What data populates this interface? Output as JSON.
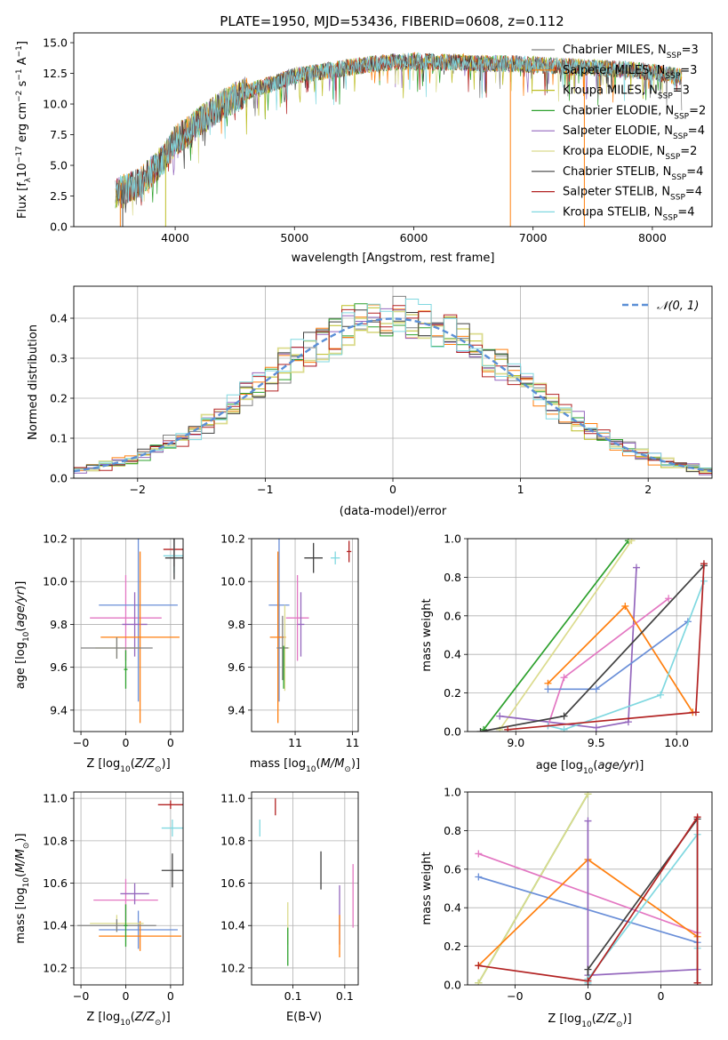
{
  "figure_title": "PLATE=1950, MJD=53436, FIBERID=0608, z=0.112",
  "colors": {
    "chabrier_miles": "#808080",
    "salpeter_miles": "#ff7f0e",
    "kroupa_miles": "#bcbd22",
    "chabrier_elodie": "#2ca02c",
    "salpeter_elodie": "#9467bd",
    "kroupa_elodie": "#dbdb8d",
    "chabrier_stelib": "#404040",
    "salpeter_stelib": "#b22222",
    "kroupa_stelib": "#80d8e0",
    "pink": "#e377c2",
    "blue": "#6a8fd8",
    "gaussian": "#5b8fd6"
  },
  "chart_data": [
    {
      "id": "spectrum",
      "type": "line",
      "xlabel": "wavelength [Angstrom, rest frame]",
      "ylabel": "Flux [f_λ 10^-17 erg cm^-2 s^-1 A^-1]",
      "xlim": [
        3150,
        8500
      ],
      "ylim": [
        0,
        15.8
      ],
      "xticks": [
        4000,
        5000,
        6000,
        7000,
        8000
      ],
      "yticks": [
        0.0,
        2.5,
        5.0,
        7.5,
        10.0,
        12.5,
        15.0
      ],
      "grid": false,
      "legend_position": "top-right",
      "series": [
        {
          "name": "Chabrier MILES, N_SSP=3"
        },
        {
          "name": "Salpeter MILES, N_SSP=3"
        },
        {
          "name": "Kroupa MILES, N_SSP=3"
        },
        {
          "name": "Chabrier ELODIE, N_SSP=2"
        },
        {
          "name": "Salpeter ELODIE, N_SSP=4"
        },
        {
          "name": "Kroupa ELODIE, N_SSP=2"
        },
        {
          "name": "Chabrier STELIB, N_SSP=4"
        },
        {
          "name": "Salpeter STELIB, N_SSP=4"
        },
        {
          "name": "Kroupa STELIB, N_SSP=4"
        }
      ],
      "envelope": {
        "x": [
          3500,
          3700,
          3900,
          4000,
          4200,
          4400,
          4600,
          4800,
          5000,
          5200,
          5400,
          5600,
          5800,
          6000,
          6200,
          6400,
          6600,
          6800,
          7000,
          7200,
          7400,
          7600,
          7800,
          8000,
          8250
        ],
        "y": [
          2.8,
          3.5,
          5.5,
          7.0,
          8.5,
          10.0,
          11.0,
          11.6,
          12.3,
          12.6,
          12.9,
          13.2,
          13.4,
          13.5,
          13.4,
          13.4,
          13.3,
          13.3,
          13.2,
          13.1,
          13.0,
          12.9,
          12.8,
          12.6,
          12.2
        ]
      }
    },
    {
      "id": "residuals",
      "type": "bar",
      "xlabel": "(data-model)/error",
      "ylabel": "Normed distribution",
      "xlim": [
        -2.5,
        2.5
      ],
      "ylim": [
        0,
        0.48
      ],
      "xticks": [
        -2,
        -1,
        0,
        1,
        2
      ],
      "yticks": [
        0.0,
        0.1,
        0.2,
        0.3,
        0.4
      ],
      "grid": true,
      "legend_position": "top-right",
      "legend": [
        "𝒩(0, 1)"
      ],
      "bin_width": 0.1
    },
    {
      "id": "age_vs_Z",
      "type": "scatter",
      "xlabel": "Z [log10(Z/Z⊙)]",
      "ylabel": "age [log10(age/yr)]",
      "xlim": [
        -0.29,
        0.32
      ],
      "ylim": [
        9.3,
        10.2
      ],
      "xticks": [
        -0.25,
        0.0,
        0.25
      ],
      "yticks": [
        9.4,
        9.6,
        9.8,
        10.0,
        10.2
      ],
      "grid": true,
      "points": [
        {
          "color": "salpeter_stelib",
          "x": 0.27,
          "y": 10.15,
          "ex": 0.06,
          "ey": 0.08
        },
        {
          "color": "kroupa_stelib",
          "x": 0.27,
          "y": 10.12,
          "ex": 0.06,
          "ey": 0.08
        },
        {
          "color": "chabrier_stelib",
          "x": 0.27,
          "y": 10.11,
          "ex": 0.05,
          "ey": 0.1
        },
        {
          "color": "pink",
          "x": 0.0,
          "y": 9.83,
          "ex": 0.2,
          "ey": 0.2
        },
        {
          "color": "blue",
          "x": 0.07,
          "y": 9.89,
          "ex": 0.22,
          "ey": 0.45
        },
        {
          "color": "salpeter_elodie",
          "x": 0.05,
          "y": 9.8,
          "ex": 0.07,
          "ey": 0.15
        },
        {
          "color": "salpeter_miles",
          "x": 0.08,
          "y": 9.74,
          "ex": 0.22,
          "ey": 0.4
        },
        {
          "color": "kroupa_elodie",
          "x": -0.05,
          "y": 9.69,
          "ex": 0.12,
          "ey": 0.05
        },
        {
          "color": "chabrier_miles",
          "x": -0.05,
          "y": 9.69,
          "ex": 0.2,
          "ey": 0.05
        },
        {
          "color": "chabrier_elodie",
          "x": 0.0,
          "y": 9.59,
          "ex": 0.01,
          "ey": 0.09
        }
      ]
    },
    {
      "id": "age_vs_mass",
      "type": "scatter",
      "xlabel": "mass [log10(M/M⊙)]",
      "ylabel": "",
      "xlim": [
        10.12,
        11.05
      ],
      "ylim": [
        9.3,
        10.2
      ],
      "xticks": [
        10.5,
        11.0
      ],
      "yticks": [
        9.4,
        9.6,
        9.8,
        10.0,
        10.2
      ],
      "grid": true,
      "points": [
        {
          "color": "salpeter_stelib",
          "x": 10.97,
          "y": 10.14,
          "ex": 0.02,
          "ey": 0.05
        },
        {
          "color": "kroupa_stelib",
          "x": 10.85,
          "y": 10.11,
          "ex": 0.04,
          "ey": 0.03
        },
        {
          "color": "chabrier_stelib",
          "x": 10.66,
          "y": 10.11,
          "ex": 0.08,
          "ey": 0.07
        },
        {
          "color": "pink",
          "x": 10.52,
          "y": 9.83,
          "ex": 0.1,
          "ey": 0.2
        },
        {
          "color": "blue",
          "x": 10.36,
          "y": 9.89,
          "ex": 0.09,
          "ey": 0.45
        },
        {
          "color": "salpeter_elodie",
          "x": 10.55,
          "y": 9.8,
          "ex": 0.03,
          "ey": 0.15
        },
        {
          "color": "salpeter_miles",
          "x": 10.35,
          "y": 9.74,
          "ex": 0.07,
          "ey": 0.4
        },
        {
          "color": "kroupa_elodie",
          "x": 10.41,
          "y": 9.69,
          "ex": 0.04,
          "ey": 0.2
        },
        {
          "color": "chabrier_miles",
          "x": 10.39,
          "y": 9.69,
          "ex": 0.05,
          "ey": 0.15
        },
        {
          "color": "chabrier_elodie",
          "x": 10.4,
          "y": 9.6,
          "ex": 0.0,
          "ey": 0.1
        }
      ]
    },
    {
      "id": "weight_vs_age",
      "type": "line",
      "xlabel": "age [log10(age/yr)]",
      "ylabel": "mass weight",
      "xlim": [
        8.7,
        10.22
      ],
      "ylim": [
        0.0,
        1.0
      ],
      "xticks": [
        9.0,
        9.5,
        10.0
      ],
      "yticks": [
        0.0,
        0.2,
        0.4,
        0.6,
        0.8,
        1.0
      ],
      "grid": true,
      "series": [
        {
          "color": "chabrier_elodie",
          "x": [
            8.8,
            9.7
          ],
          "y": [
            0.01,
            0.99
          ]
        },
        {
          "color": "kroupa_elodie",
          "x": [
            8.9,
            9.72
          ],
          "y": [
            0.01,
            0.99
          ]
        },
        {
          "color": "salpeter_elodie",
          "x": [
            8.9,
            9.5,
            9.7,
            9.75
          ],
          "y": [
            0.08,
            0.02,
            0.05,
            0.85
          ]
        },
        {
          "color": "pink",
          "x": [
            9.2,
            9.3,
            9.95
          ],
          "y": [
            0.03,
            0.28,
            0.69
          ]
        },
        {
          "color": "salpeter_miles",
          "x": [
            9.2,
            9.68,
            10.1
          ],
          "y": [
            0.25,
            0.65,
            0.1
          ]
        },
        {
          "color": "blue",
          "x": [
            9.2,
            9.5,
            10.07
          ],
          "y": [
            0.22,
            0.22,
            0.57
          ]
        },
        {
          "color": "chabrier_stelib",
          "x": [
            8.78,
            9.3,
            10.17
          ],
          "y": [
            0.0,
            0.08,
            0.86
          ]
        },
        {
          "color": "kroupa_stelib",
          "x": [
            9.2,
            9.3,
            9.9,
            10.17
          ],
          "y": [
            0.03,
            0.01,
            0.19,
            0.78
          ]
        },
        {
          "color": "salpeter_stelib",
          "x": [
            8.95,
            10.12,
            10.17
          ],
          "y": [
            0.01,
            0.1,
            0.87
          ]
        }
      ]
    },
    {
      "id": "mass_vs_Z",
      "type": "scatter",
      "xlabel": "Z [log10(Z/Z⊙)]",
      "ylabel": "mass [log10(M/M⊙)]",
      "xlim": [
        -0.29,
        0.32
      ],
      "ylim": [
        10.12,
        11.03
      ],
      "xticks": [
        -0.25,
        0.0,
        0.25
      ],
      "yticks": [
        10.2,
        10.4,
        10.6,
        10.8,
        11.0
      ],
      "grid": true,
      "points": [
        {
          "color": "salpeter_stelib",
          "x": 0.25,
          "y": 10.97,
          "ex": 0.07,
          "ey": 0.02
        },
        {
          "color": "kroupa_stelib",
          "x": 0.26,
          "y": 10.86,
          "ex": 0.06,
          "ey": 0.04
        },
        {
          "color": "chabrier_stelib",
          "x": 0.26,
          "y": 10.66,
          "ex": 0.06,
          "ey": 0.08
        },
        {
          "color": "pink",
          "x": 0.0,
          "y": 10.52,
          "ex": 0.18,
          "ey": 0.1
        },
        {
          "color": "salpeter_elodie",
          "x": 0.05,
          "y": 10.55,
          "ex": 0.08,
          "ey": 0.05
        },
        {
          "color": "blue",
          "x": 0.07,
          "y": 10.38,
          "ex": 0.22,
          "ey": 0.09
        },
        {
          "color": "salpeter_miles",
          "x": 0.08,
          "y": 10.35,
          "ex": 0.23,
          "ey": 0.07
        },
        {
          "color": "kroupa_elodie",
          "x": -0.05,
          "y": 10.41,
          "ex": 0.15,
          "ey": 0.04
        },
        {
          "color": "chabrier_miles",
          "x": -0.05,
          "y": 10.4,
          "ex": 0.22,
          "ey": 0.03
        },
        {
          "color": "chabrier_elodie",
          "x": 0.0,
          "y": 10.4,
          "ex": 0.01,
          "ey": 0.1
        }
      ]
    },
    {
      "id": "mass_vs_ebv",
      "type": "scatter",
      "xlabel": "E(B-V)",
      "ylabel": "",
      "xlim": [
        0.01,
        0.113
      ],
      "ylim": [
        10.12,
        11.03
      ],
      "xticks": [
        0.05,
        0.1
      ],
      "yticks": [
        10.2,
        10.4,
        10.6,
        10.8,
        11.0
      ],
      "grid": true,
      "points": [
        {
          "color": "salpeter_stelib",
          "x": 0.033,
          "y": 10.96,
          "ex": 0.0,
          "ey": 0.04
        },
        {
          "color": "kroupa_stelib",
          "x": 0.018,
          "y": 10.86,
          "ex": 0.0,
          "ey": 0.04
        },
        {
          "color": "chabrier_stelib",
          "x": 0.077,
          "y": 10.66,
          "ex": 0.0,
          "ey": 0.09
        },
        {
          "color": "pink",
          "x": 0.108,
          "y": 10.54,
          "ex": 0.0,
          "ey": 0.15
        },
        {
          "color": "salpeter_elodie",
          "x": 0.095,
          "y": 10.45,
          "ex": 0.0,
          "ey": 0.14
        },
        {
          "color": "salpeter_miles",
          "x": 0.095,
          "y": 10.35,
          "ex": 0.0,
          "ey": 0.1
        },
        {
          "color": "kroupa_elodie",
          "x": 0.045,
          "y": 10.41,
          "ex": 0.0,
          "ey": 0.1
        },
        {
          "color": "chabrier_elodie",
          "x": 0.045,
          "y": 10.3,
          "ex": 0.0,
          "ey": 0.09
        }
      ]
    },
    {
      "id": "weight_vs_Z",
      "type": "line",
      "xlabel": "Z [log10(Z/Z⊙)]",
      "ylabel": "mass weight",
      "xlim": [
        -0.33,
        0.34
      ],
      "ylim": [
        0.0,
        1.0
      ],
      "xticks": [
        -0.2,
        0.0,
        0.2
      ],
      "yticks": [
        0.0,
        0.2,
        0.4,
        0.6,
        0.8,
        1.0
      ],
      "grid": true,
      "series": [
        {
          "color": "chabrier_elodie",
          "x": [
            -0.3,
            0.0
          ],
          "y": [
            0.01,
            0.99
          ]
        },
        {
          "color": "kroupa_elodie",
          "x": [
            -0.3,
            0.0
          ],
          "y": [
            0.01,
            0.99
          ]
        },
        {
          "color": "pink",
          "x": [
            -0.3,
            0.3
          ],
          "y": [
            0.68,
            0.27
          ]
        },
        {
          "color": "blue",
          "x": [
            -0.3,
            0.3
          ],
          "y": [
            0.56,
            0.22
          ]
        },
        {
          "color": "salpeter_miles",
          "x": [
            -0.3,
            0.0,
            0.3
          ],
          "y": [
            0.1,
            0.65,
            0.25
          ]
        },
        {
          "color": "salpeter_elodie",
          "x": [
            0.0,
            0.0,
            0.3
          ],
          "y": [
            0.85,
            0.05,
            0.08
          ]
        },
        {
          "color": "chabrier_stelib",
          "x": [
            0.0,
            0.0,
            0.3,
            0.3
          ],
          "y": [
            0.0,
            0.08,
            0.86,
            0.01
          ]
        },
        {
          "color": "kroupa_stelib",
          "x": [
            0.0,
            0.0,
            0.3,
            0.3
          ],
          "y": [
            0.01,
            0.03,
            0.78,
            0.19
          ]
        },
        {
          "color": "salpeter_stelib",
          "x": [
            -0.3,
            0.0,
            0.3,
            0.3
          ],
          "y": [
            0.1,
            0.02,
            0.87,
            0.01
          ]
        }
      ]
    }
  ]
}
